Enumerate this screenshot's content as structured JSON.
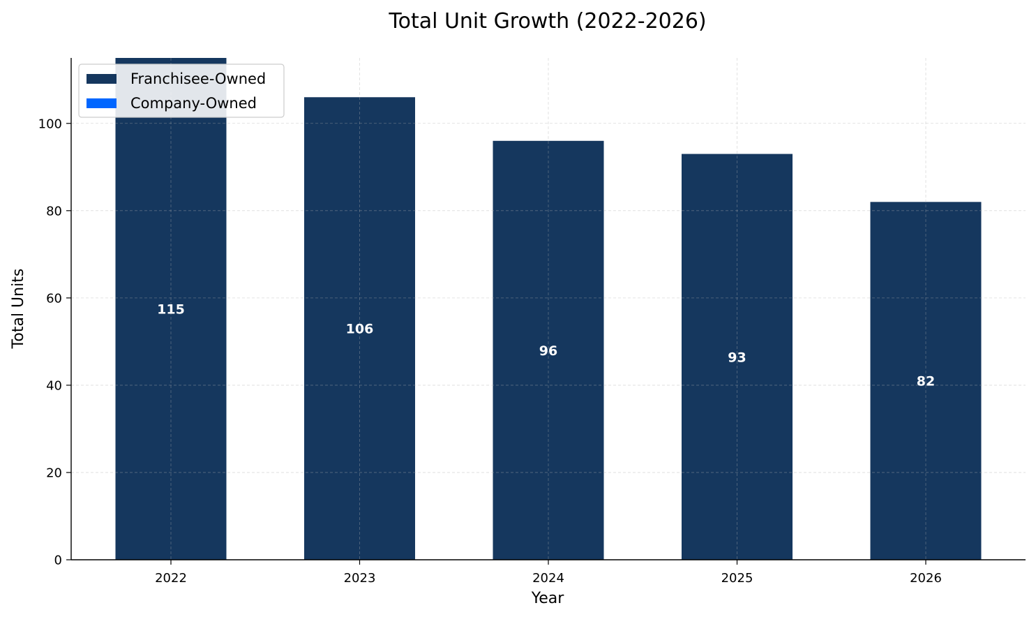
{
  "chart_data": {
    "type": "bar",
    "stacked": true,
    "title": "Total Unit Growth (2022-2026)",
    "xlabel": "Year",
    "ylabel": "Total Units",
    "categories": [
      "2022",
      "2023",
      "2024",
      "2025",
      "2026"
    ],
    "series": [
      {
        "name": "Franchisee-Owned",
        "color": "#15375e",
        "values": [
          115,
          106,
          96,
          93,
          82
        ]
      },
      {
        "name": "Company-Owned",
        "color": "#0066ff",
        "values": [
          0,
          0,
          0,
          0,
          0
        ]
      }
    ],
    "total_labels": [
      "115",
      "106",
      "96",
      "93",
      "82"
    ],
    "ylim": [
      0,
      115
    ],
    "yticks": [
      0,
      20,
      40,
      60,
      80,
      100
    ],
    "grid": true,
    "legend_position": "top-left"
  }
}
